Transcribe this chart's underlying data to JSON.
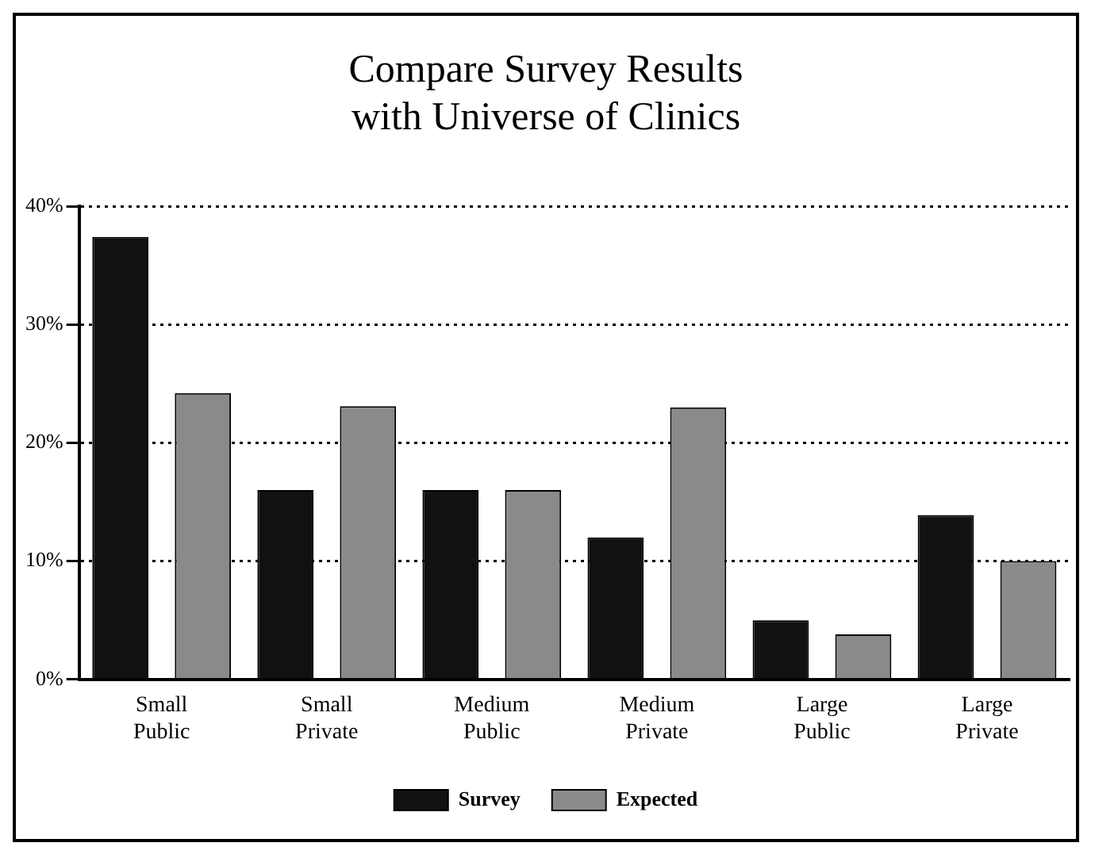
{
  "chart_data": {
    "type": "bar",
    "title": "Compare Survey Results\nwith Universe of Clinics",
    "categories": [
      "Small Public",
      "Small Private",
      "Medium Public",
      "Medium Private",
      "Large Public",
      "Large Private"
    ],
    "series": [
      {
        "name": "Survey",
        "color": "#111111",
        "values": [
          37.4,
          16,
          16,
          12,
          5,
          13.9
        ]
      },
      {
        "name": "Expected",
        "color": "#8a8a8a",
        "values": [
          24.2,
          23.1,
          16,
          23,
          3.8,
          10
        ]
      }
    ],
    "ylim": [
      0,
      40
    ],
    "yticks": [
      {
        "value": 0,
        "label": "0%"
      },
      {
        "value": 10,
        "label": "10%"
      },
      {
        "value": 20,
        "label": "20%"
      },
      {
        "value": 30,
        "label": "30%"
      },
      {
        "value": 40,
        "label": "40%"
      }
    ],
    "grid": "y",
    "legend": "bottom"
  }
}
